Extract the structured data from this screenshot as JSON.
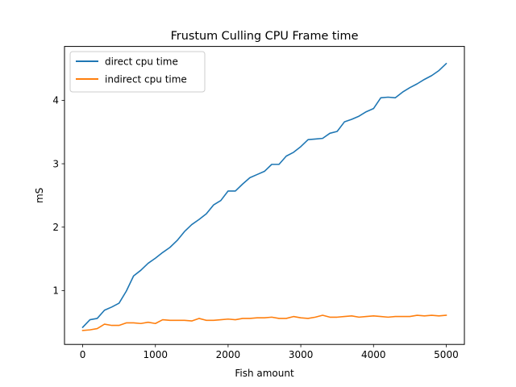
{
  "chart_data": {
    "type": "line",
    "title": "Frustum Culling CPU Frame time",
    "xlabel": "Fish amount",
    "ylabel": "mS",
    "xlim": [
      -250,
      5250
    ],
    "ylim": [
      0.15,
      4.85
    ],
    "xticks": [
      0,
      1000,
      2000,
      3000,
      4000,
      5000
    ],
    "xtick_labels": [
      "0",
      "1000",
      "2000",
      "3000",
      "4000",
      "5000"
    ],
    "yticks": [
      1,
      2,
      3,
      4
    ],
    "ytick_labels": [
      "1",
      "2",
      "3",
      "4"
    ],
    "grid": false,
    "legend_position": "upper-left",
    "x": [
      0,
      100,
      200,
      300,
      400,
      500,
      600,
      700,
      800,
      900,
      1000,
      1100,
      1200,
      1300,
      1400,
      1500,
      1600,
      1700,
      1800,
      1900,
      2000,
      2100,
      2200,
      2300,
      2400,
      2500,
      2600,
      2700,
      2800,
      2900,
      3000,
      3100,
      3200,
      3300,
      3400,
      3500,
      3600,
      3700,
      3800,
      3900,
      4000,
      4100,
      4200,
      4300,
      4400,
      4500,
      4600,
      4700,
      4800,
      4900,
      5000
    ],
    "series": [
      {
        "name": "direct cpu time",
        "color": "#1f77b4",
        "values": [
          0.42,
          0.54,
          0.56,
          0.69,
          0.74,
          0.8,
          0.99,
          1.23,
          1.32,
          1.43,
          1.51,
          1.6,
          1.68,
          1.79,
          1.93,
          2.04,
          2.12,
          2.21,
          2.35,
          2.42,
          2.57,
          2.57,
          2.68,
          2.78,
          2.83,
          2.88,
          2.99,
          2.99,
          3.12,
          3.18,
          3.27,
          3.38,
          3.39,
          3.4,
          3.48,
          3.51,
          3.66,
          3.7,
          3.75,
          3.82,
          3.87,
          4.04,
          4.05,
          4.04,
          4.13,
          4.2,
          4.26,
          4.33,
          4.39,
          4.47,
          4.58
        ]
      },
      {
        "name": "indirect cpu time",
        "color": "#ff7f0e",
        "values": [
          0.37,
          0.38,
          0.4,
          0.47,
          0.45,
          0.45,
          0.49,
          0.49,
          0.48,
          0.5,
          0.48,
          0.54,
          0.53,
          0.53,
          0.53,
          0.52,
          0.56,
          0.53,
          0.53,
          0.54,
          0.55,
          0.54,
          0.56,
          0.56,
          0.57,
          0.57,
          0.58,
          0.56,
          0.56,
          0.59,
          0.57,
          0.56,
          0.58,
          0.61,
          0.58,
          0.58,
          0.59,
          0.6,
          0.58,
          0.59,
          0.6,
          0.59,
          0.58,
          0.59,
          0.59,
          0.59,
          0.61,
          0.6,
          0.61,
          0.6,
          0.61
        ]
      }
    ]
  }
}
